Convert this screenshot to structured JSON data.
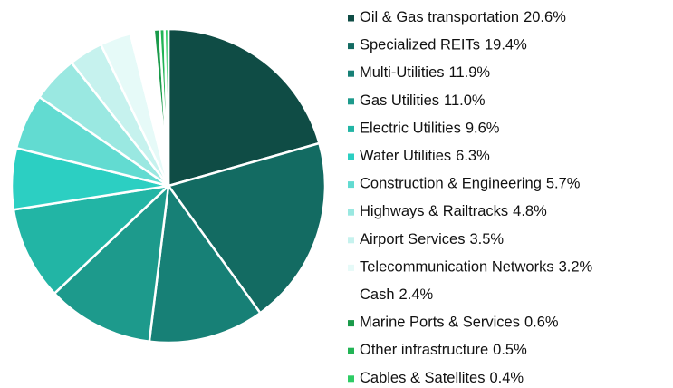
{
  "chart_data": {
    "type": "pie",
    "categories": [
      "Oil & Gas transportation",
      "Specialized REITs",
      "Multi-Utilities",
      "Gas Utilities",
      "Electric Utilities",
      "Water Utilities",
      "Construction & Engineering",
      "Highways & Railtracks",
      "Airport Services",
      "Telecommunication Networks",
      "Cash",
      "Marine Ports & Services",
      "Other infrastructure",
      "Cables & Satellites"
    ],
    "values": [
      20.6,
      19.4,
      11.9,
      11.0,
      9.6,
      6.3,
      5.7,
      4.8,
      3.5,
      3.2,
      2.4,
      0.6,
      0.5,
      0.4
    ],
    "value_labels": [
      "20.6%",
      "19.4%",
      "11.9%",
      "11.0%",
      "9.6%",
      "6.3%",
      "5.7%",
      "4.8%",
      "3.5%",
      "3.2%",
      "2.4%",
      "0.6%",
      "0.5%",
      "0.4%"
    ],
    "colors": [
      "#0f4c45",
      "#136b62",
      "#178076",
      "#1d9a8c",
      "#22b5a5",
      "#2ccfc2",
      "#62dbd1",
      "#9ae8e1",
      "#c6f2ee",
      "#e6faf8",
      "#ffffff",
      "#1a9a4a",
      "#22b455",
      "#2ecc65"
    ],
    "legend": "right"
  }
}
